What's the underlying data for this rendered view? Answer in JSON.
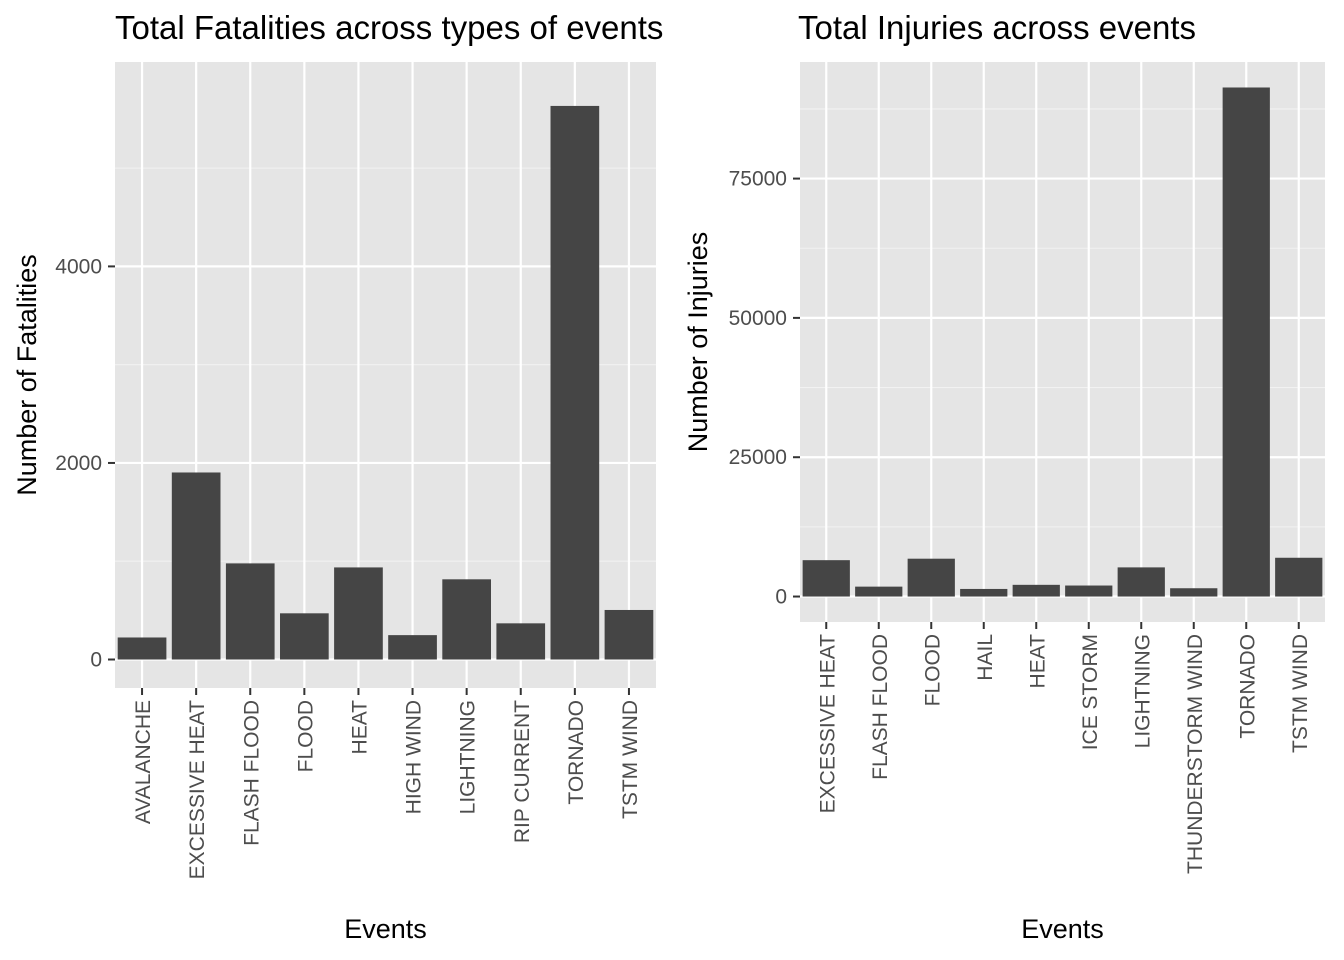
{
  "chart_data": [
    {
      "type": "bar",
      "title": "Total Fatalities across types of events",
      "xlabel": "Events",
      "ylabel": "Number of Fatalities",
      "categories": [
        "AVALANCHE",
        "EXCESSIVE HEAT",
        "FLASH FLOOD",
        "FLOOD",
        "HEAT",
        "HIGH WIND",
        "LIGHTNING",
        "RIP CURRENT",
        "TORNADO",
        "TSTM WIND"
      ],
      "values": [
        224,
        1903,
        978,
        470,
        937,
        248,
        816,
        368,
        5633,
        504
      ],
      "ylim": [
        -290,
        6080
      ],
      "yticks": [
        0,
        2000,
        4000
      ],
      "ytick_labels": [
        "0",
        "2000",
        "4000"
      ],
      "grid": true,
      "bar_color": "#454545",
      "panel_color": "#e5e5e5"
    },
    {
      "type": "bar",
      "title": "Total Injuries across events",
      "xlabel": "Events",
      "ylabel": "Number of Injuries",
      "categories": [
        "EXCESSIVE HEAT",
        "FLASH FLOOD",
        "FLOOD",
        "HAIL",
        "HEAT",
        "ICE STORM",
        "LIGHTNING",
        "THUNDERSTORM WIND",
        "TORNADO",
        "TSTM WIND"
      ],
      "values": [
        6525,
        1777,
        6789,
        1361,
        2100,
        1975,
        5230,
        1488,
        91346,
        6957
      ],
      "ylim": [
        -4570,
        95920
      ],
      "yticks": [
        0,
        25000,
        50000,
        75000
      ],
      "ytick_labels": [
        "0",
        "25000",
        "50000",
        "75000"
      ],
      "grid": true,
      "bar_color": "#454545",
      "panel_color": "#e5e5e5"
    }
  ]
}
